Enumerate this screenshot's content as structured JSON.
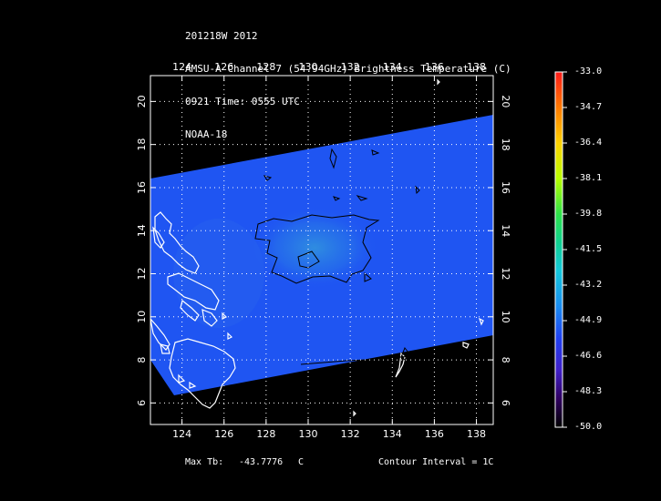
{
  "header": {
    "lines": [
      "201218W 2012",
      "AMSU-A Channel 7 (54.94GHz) Brightness Temperature (C)",
      "0921 Time: 0555 UTC",
      "NOAA-18"
    ]
  },
  "map": {
    "lon_range": [
      122.5,
      138.8
    ],
    "lat_range": [
      5.0,
      21.2
    ],
    "lon_ticks": [
      "124",
      "126",
      "128",
      "130",
      "132",
      "134",
      "136",
      "138"
    ],
    "lat_ticks": [
      "6",
      "8",
      "10",
      "12",
      "14",
      "16",
      "18",
      "20"
    ],
    "grid": "dotted",
    "swath_color": "#1f55f2",
    "warm_center_color": "#2f8de0",
    "coast_color": "#ffffff",
    "contour_color": "#000000"
  },
  "colorbar": {
    "labels": [
      "-33.0",
      "-34.7",
      "-36.4",
      "-38.1",
      "-39.8",
      "-41.5",
      "-43.2",
      "-44.9",
      "-46.6",
      "-48.3",
      "-50.0"
    ],
    "colors": [
      "#ff1a1a",
      "#ff7a00",
      "#ffd200",
      "#b8ff00",
      "#2ee24a",
      "#10d090",
      "#14c8dc",
      "#1a8cf0",
      "#2040f0",
      "#4020c8",
      "#300060",
      "#000000"
    ]
  },
  "footer": {
    "max_tb_label": "Max Tb:",
    "max_tb_value": "-43.7776",
    "unit": "C",
    "contour": "Contour Interval = 1C"
  }
}
